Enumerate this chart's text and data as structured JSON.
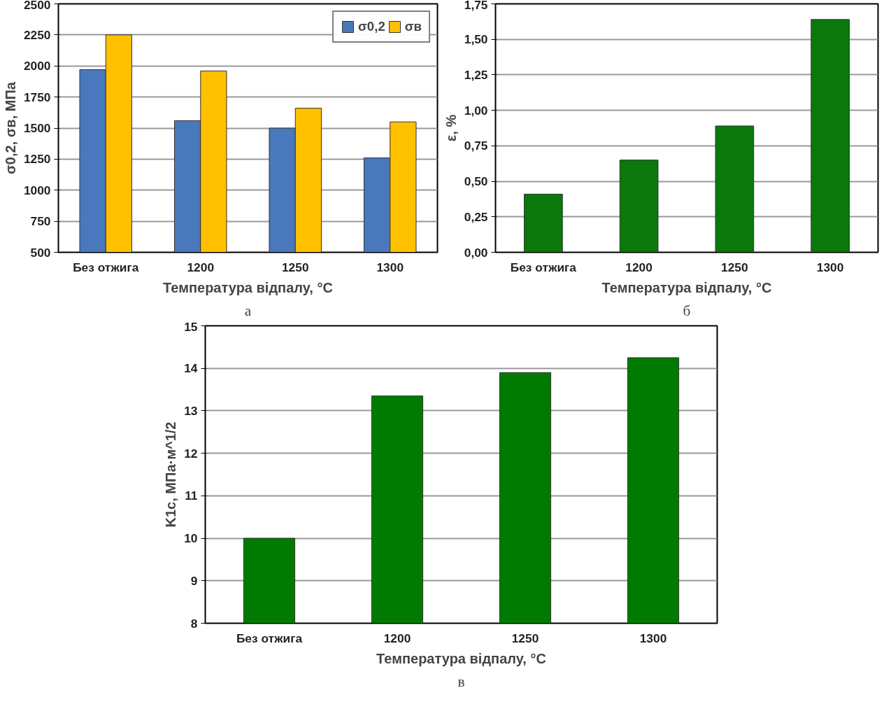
{
  "chart_data": [
    {
      "type": "bar",
      "categories": [
        "Без отжига",
        "1200",
        "1250",
        "1300"
      ],
      "xlabel": "Температура відпалу, °C",
      "ylabel": "σ0,2, σв, МПа",
      "annotations": [
        "а"
      ],
      "series": [
        {
          "name": "σ0,2",
          "color": "#4a78bd",
          "values": [
            1970,
            1560,
            1500,
            1260
          ]
        },
        {
          "name": "σв",
          "color": "#ffc000",
          "values": [
            2250,
            1960,
            1660,
            1550
          ]
        }
      ],
      "ylim": [
        500,
        2500
      ],
      "yticks": [
        500,
        750,
        1000,
        1250,
        1500,
        1750,
        2000,
        2250,
        2500
      ],
      "grid": "y",
      "legend": "top right"
    },
    {
      "type": "bar",
      "categories": [
        "Без отжига",
        "1200",
        "1250",
        "1300"
      ],
      "xlabel": "Температура відпалу, °C",
      "ylabel": "ε, %",
      "annotations": [
        "б"
      ],
      "values": [
        0.41,
        0.65,
        0.89,
        1.64
      ],
      "color": "#0a780a",
      "ylim": [
        0,
        1.75
      ],
      "yticks": [
        {
          "value": 0,
          "label": "0,00"
        },
        {
          "value": 0.25,
          "label": "0,25"
        },
        {
          "value": 0.5,
          "label": "0,50"
        },
        {
          "value": 0.75,
          "label": "0,75"
        },
        {
          "value": 1,
          "label": "1,00"
        },
        {
          "value": 1.25,
          "label": "1,25"
        },
        {
          "value": 1.5,
          "label": "1,50"
        },
        {
          "value": 1.75,
          "label": "1,75"
        }
      ],
      "grid": "y"
    },
    {
      "type": "bar",
      "categories": [
        "Без отжига",
        "1200",
        "1250",
        "1300"
      ],
      "xlabel": "Температура відпалу, °C",
      "ylabel": "K1c, МПа·м^1/2",
      "annotations": [
        "в"
      ],
      "values": [
        10.0,
        13.35,
        13.9,
        14.25
      ],
      "color": "#007a00",
      "ylim": [
        8,
        15
      ],
      "yticks": [
        8,
        9,
        10,
        11,
        12,
        13,
        14,
        15
      ],
      "grid": "y"
    }
  ]
}
